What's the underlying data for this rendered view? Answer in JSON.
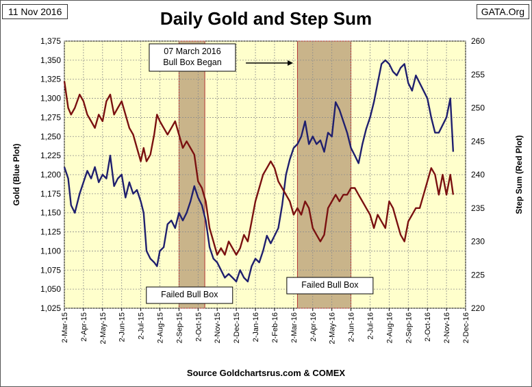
{
  "header": {
    "title": "Daily Gold and Step Sum",
    "date_label": "11 Nov 2016",
    "source_tag": "GATA.Org"
  },
  "footer": {
    "source": "Source Goldchartsrus.com & COMEX"
  },
  "colors": {
    "plot_bg": "#ffffcc",
    "gold_line": "#1f1f6e",
    "step_line": "#7a1010",
    "box_fill": "#c9b48a",
    "box_edge": "#b23030",
    "grid": "#8c8c8c"
  },
  "chart_data": {
    "type": "line",
    "title": "Daily Gold and Step Sum",
    "categories": [
      "2-Mar-15",
      "2-Apr-15",
      "2-May-15",
      "2-Jun-15",
      "2-Jul-15",
      "2-Aug-15",
      "2-Sep-15",
      "2-Oct-15",
      "2-Nov-15",
      "2-Dec-15",
      "2-Jan-16",
      "2-Feb-16",
      "2-Mar-16",
      "2-Apr-16",
      "2-May-16",
      "2-Jun-16",
      "2-Jul-16",
      "2-Aug-16",
      "2-Sep-16",
      "2-Oct-16",
      "2-Nov-16",
      "2-Dec-16"
    ],
    "ylabel_left": "Gold   (Blue Plot)",
    "ylabel_right": "Step Sum   (Red Plot)",
    "ylim_left": [
      1025,
      1375
    ],
    "ylim_right": [
      220,
      260
    ],
    "yticks_left": [
      "1,025",
      "1,050",
      "1,075",
      "1,100",
      "1,125",
      "1,150",
      "1,175",
      "1,200",
      "1,225",
      "1,250",
      "1,275",
      "1,300",
      "1,325",
      "1,350",
      "1,375"
    ],
    "yticks_right": [
      "220",
      "225",
      "230",
      "235",
      "240",
      "245",
      "250",
      "255",
      "260"
    ],
    "grid": true,
    "series": [
      {
        "name": "Gold",
        "axis": "left",
        "x": [
          0,
          0.2,
          0.35,
          0.55,
          0.8,
          1,
          1.2,
          1.4,
          1.6,
          1.8,
          2,
          2.2,
          2.4,
          2.6,
          2.8,
          3,
          3.2,
          3.4,
          3.6,
          3.8,
          4,
          4.15,
          4.3,
          4.5,
          4.7,
          4.85,
          5,
          5.2,
          5.4,
          5.6,
          5.8,
          6,
          6.2,
          6.4,
          6.6,
          6.8,
          7,
          7.2,
          7.4,
          7.6,
          7.8,
          8,
          8.2,
          8.4,
          8.6,
          8.8,
          9,
          9.2,
          9.4,
          9.6,
          9.8,
          10,
          10.2,
          10.4,
          10.6,
          10.8,
          11,
          11.2,
          11.4,
          11.6,
          11.8,
          12,
          12.2,
          12.4,
          12.6,
          12.8,
          13,
          13.2,
          13.4,
          13.6,
          13.8,
          14,
          14.2,
          14.4,
          14.6,
          14.8,
          15,
          15.2,
          15.4,
          15.6,
          15.8,
          16,
          16.2,
          16.4,
          16.6,
          16.8,
          17,
          17.2,
          17.4,
          17.6,
          17.8,
          18,
          18.2,
          18.4,
          18.6,
          18.8,
          19,
          19.2,
          19.4,
          19.6,
          19.8,
          20,
          20.2,
          20.35
        ],
        "values": [
          1210,
          1195,
          1160,
          1150,
          1175,
          1190,
          1205,
          1195,
          1210,
          1190,
          1200,
          1195,
          1225,
          1185,
          1195,
          1200,
          1170,
          1190,
          1175,
          1180,
          1165,
          1150,
          1100,
          1090,
          1085,
          1080,
          1100,
          1105,
          1135,
          1140,
          1130,
          1150,
          1140,
          1150,
          1165,
          1185,
          1170,
          1160,
          1140,
          1105,
          1090,
          1085,
          1075,
          1065,
          1070,
          1065,
          1060,
          1075,
          1065,
          1060,
          1080,
          1090,
          1085,
          1100,
          1120,
          1110,
          1120,
          1130,
          1160,
          1200,
          1220,
          1235,
          1240,
          1250,
          1270,
          1240,
          1250,
          1240,
          1245,
          1230,
          1255,
          1250,
          1295,
          1285,
          1270,
          1255,
          1235,
          1225,
          1215,
          1240,
          1260,
          1275,
          1295,
          1320,
          1345,
          1350,
          1345,
          1335,
          1330,
          1340,
          1345,
          1320,
          1310,
          1330,
          1320,
          1310,
          1300,
          1275,
          1255,
          1255,
          1265,
          1275,
          1300,
          1230
        ]
      },
      {
        "name": "Step Sum",
        "axis": "right",
        "x": [
          0,
          0.2,
          0.35,
          0.55,
          0.8,
          1,
          1.2,
          1.4,
          1.6,
          1.8,
          2,
          2.2,
          2.4,
          2.6,
          2.8,
          3,
          3.2,
          3.4,
          3.6,
          3.8,
          4,
          4.15,
          4.3,
          4.5,
          4.7,
          4.85,
          5,
          5.2,
          5.4,
          5.6,
          5.8,
          6,
          6.2,
          6.4,
          6.6,
          6.8,
          7,
          7.2,
          7.4,
          7.6,
          7.8,
          8,
          8.2,
          8.4,
          8.6,
          8.8,
          9,
          9.2,
          9.4,
          9.6,
          9.8,
          10,
          10.2,
          10.4,
          10.6,
          10.8,
          11,
          11.2,
          11.4,
          11.6,
          11.8,
          12,
          12.2,
          12.4,
          12.6,
          12.8,
          13,
          13.2,
          13.4,
          13.6,
          13.8,
          14,
          14.2,
          14.4,
          14.6,
          14.8,
          15,
          15.2,
          15.4,
          15.6,
          15.8,
          16,
          16.2,
          16.4,
          16.6,
          16.8,
          17,
          17.2,
          17.4,
          17.6,
          17.8,
          18,
          18.2,
          18.4,
          18.6,
          18.8,
          19,
          19.2,
          19.4,
          19.6,
          19.8,
          20,
          20.2,
          20.35
        ],
        "values": [
          254,
          250,
          249,
          250,
          252,
          251,
          249,
          248,
          247,
          249,
          248,
          251,
          252,
          249,
          250,
          251,
          249,
          247,
          246,
          244,
          242,
          244,
          242,
          243,
          246,
          249,
          248,
          247,
          246,
          247,
          248,
          246,
          244,
          245,
          244,
          243,
          239,
          238,
          236,
          232,
          230,
          228,
          229,
          228,
          230,
          229,
          228,
          229,
          231,
          230,
          233,
          236,
          238,
          240,
          241,
          242,
          241,
          239,
          238,
          237,
          236,
          234,
          235,
          234,
          236,
          235,
          232,
          231,
          230,
          231,
          235,
          236,
          237,
          236,
          237,
          237,
          238,
          238,
          237,
          236,
          235,
          234,
          232,
          234,
          233,
          232,
          236,
          235,
          233,
          231,
          230,
          233,
          234,
          235,
          235,
          237,
          239,
          241,
          240,
          237,
          240,
          237,
          240,
          237
        ]
      }
    ],
    "annotations": [
      {
        "text": "07 March 2016 Bull Box Began",
        "lines": [
          "07 March 2016",
          "Bull Box Began"
        ]
      },
      {
        "text": "Failed Bull Box",
        "lines": [
          "Failed Bull Box"
        ]
      },
      {
        "text": "Failed Bull Box",
        "lines": [
          "Failed Bull Box"
        ]
      }
    ],
    "shaded_boxes": [
      {
        "label": "first failed bull box",
        "x_start": 6.0,
        "x_end": 7.35
      },
      {
        "label": "second bull box",
        "x_start": 12.2,
        "x_end": 15.0
      }
    ]
  }
}
